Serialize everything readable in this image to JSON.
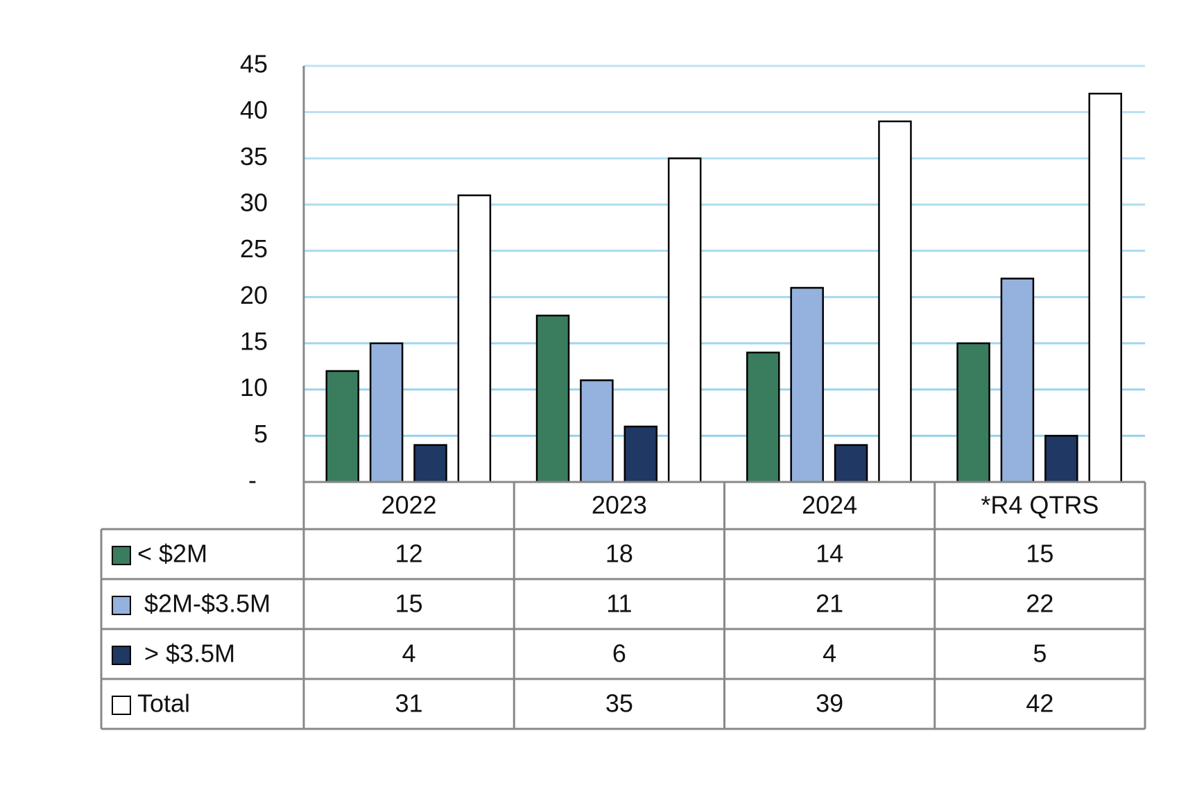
{
  "chart_data": {
    "type": "bar",
    "categories": [
      "2022",
      "2023",
      "2024",
      "*R4 QTRS"
    ],
    "series": [
      {
        "name": "< $2M",
        "color": "#3a7d5e",
        "values": [
          12,
          18,
          14,
          15
        ]
      },
      {
        "name": "$2M-$3.5M",
        "color": "#95b1dd",
        "values": [
          15,
          11,
          21,
          22
        ]
      },
      {
        "name": "> $3.5M",
        "color": "#1f3864",
        "values": [
          4,
          6,
          4,
          5
        ]
      },
      {
        "name": "Total",
        "color": "#ffffff",
        "values": [
          31,
          35,
          39,
          42
        ]
      }
    ],
    "ylim": [
      0,
      45
    ],
    "yticks": [
      {
        "value": 0,
        "label": "-"
      },
      5,
      10,
      15,
      20,
      25,
      30,
      35,
      40,
      45
    ],
    "grid": true,
    "grid_color": "#8fd0ea",
    "legend": "data-table"
  }
}
